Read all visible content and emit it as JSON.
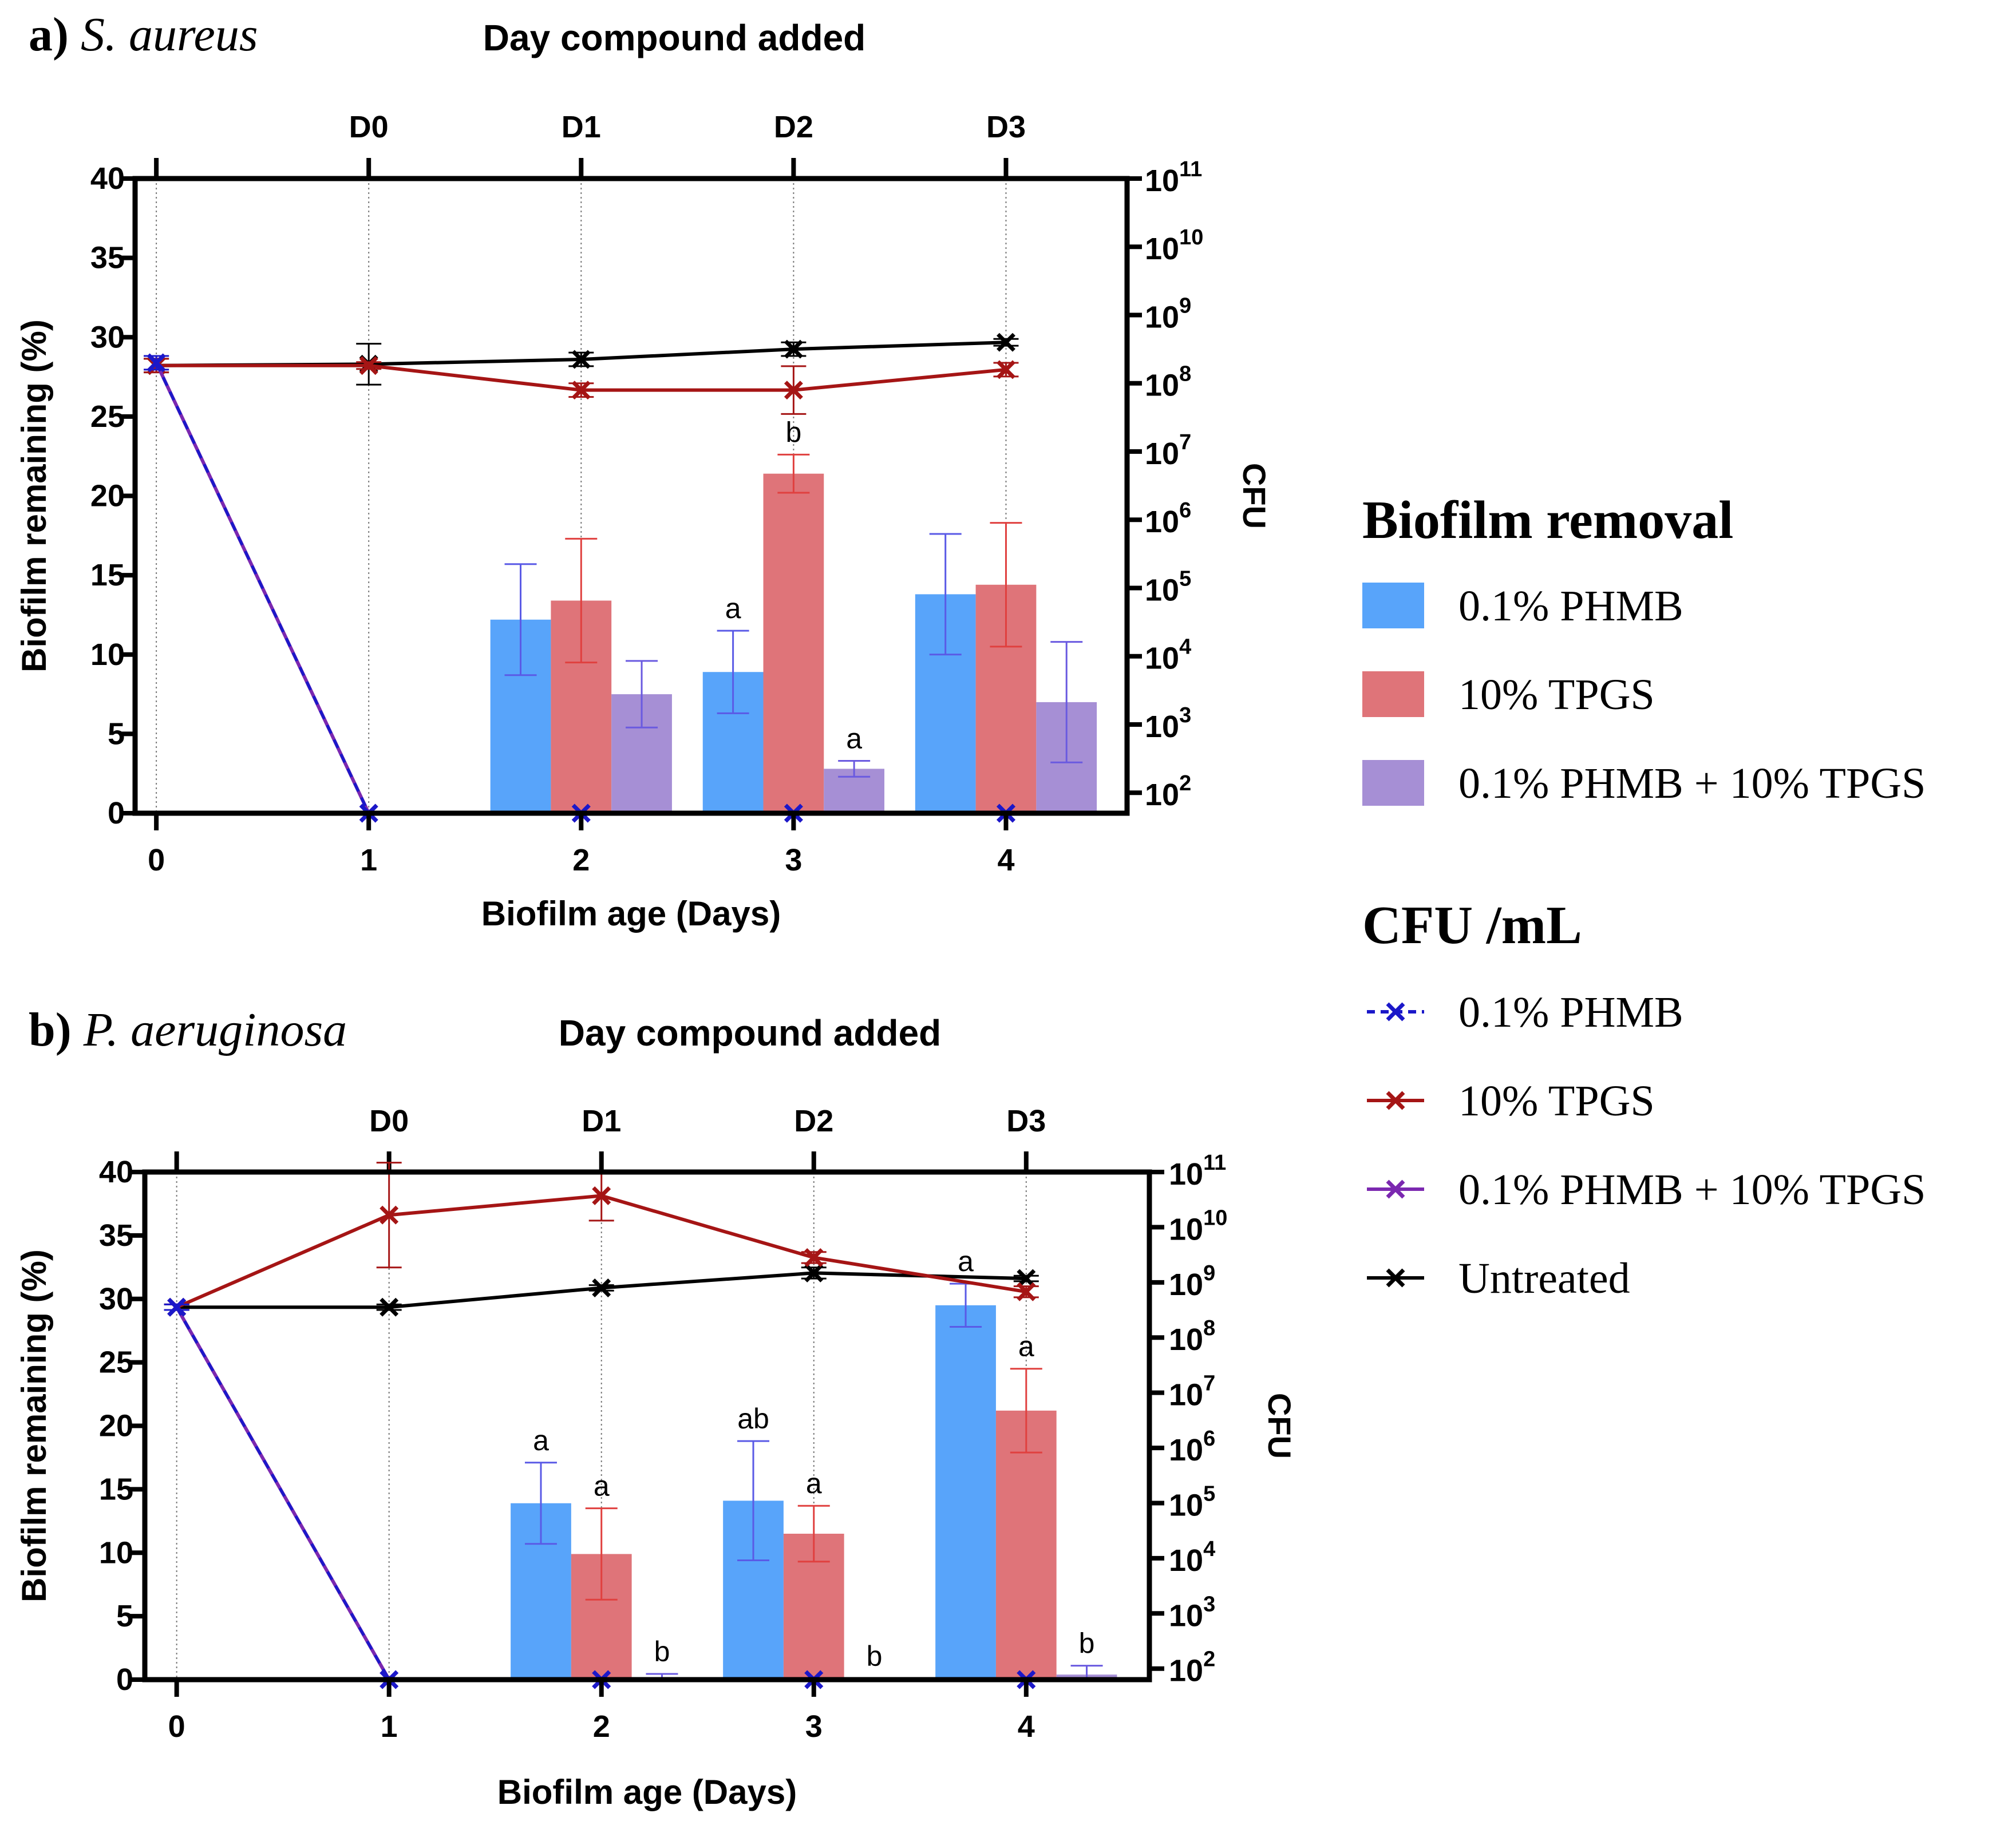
{
  "figure": {
    "colors": {
      "phmb_bar": "#58a4fa",
      "tpgs_bar": "#df7479",
      "combo_bar": "#a68fd5",
      "phmb_err": "#5a5ae6",
      "tpgs_err": "#e0403f",
      "combo_err": "#6a5ae0",
      "phmb_line": "#1b18c9",
      "tpgs_line": "#a51515",
      "combo_line": "#7b28b0",
      "untreated_line": "#000000"
    },
    "legend": {
      "removal_title": "Biofilm removal",
      "removal_items": [
        {
          "label": "0.1% PHMB",
          "color": "#58a4fa"
        },
        {
          "label": "10% TPGS",
          "color": "#df7479"
        },
        {
          "label": "0.1% PHMB + 10% TPGS",
          "color": "#a68fd5"
        }
      ],
      "cfu_title": "CFU /mL",
      "cfu_items": [
        {
          "label": "0.1% PHMB",
          "color": "#1b18c9",
          "dashed": true
        },
        {
          "label": "10% TPGS",
          "color": "#a51515",
          "dashed": false
        },
        {
          "label": "0.1% PHMB + 10% TPGS",
          "color": "#7b28b0",
          "dashed": false
        },
        {
          "label": "Untreated",
          "color": "#000000",
          "dashed": false
        }
      ]
    }
  },
  "chart_data": [
    {
      "type": "bar",
      "panel_prefix": "a) ",
      "organism": "S. aureus",
      "top_axis_title": "Day compound added",
      "top_ticks": [
        {
          "label": "D0",
          "x": 1
        },
        {
          "label": "D1",
          "x": 2
        },
        {
          "label": "D2",
          "x": 3
        },
        {
          "label": "D3",
          "x": 4
        }
      ],
      "xlabel": "Biofilm age (Days)",
      "x_ticks": [
        0,
        1,
        2,
        3,
        4
      ],
      "xlim": [
        -0.1,
        4.57
      ],
      "ylabel": "Biofilm remaining (%)",
      "ylim": [
        0,
        40
      ],
      "y_ticks": [
        0,
        5,
        10,
        15,
        20,
        25,
        30,
        35,
        40
      ],
      "y2label": "CFU",
      "y2_exponents": [
        2,
        3,
        4,
        5,
        6,
        7,
        8,
        9,
        10,
        11
      ],
      "y2_range": [
        1.7,
        11
      ],
      "bar_series": [
        {
          "name": "0.1% PHMB",
          "x": [
            2,
            3,
            4
          ],
          "values": [
            12.2,
            8.9,
            13.8
          ],
          "err": [
            3.5,
            2.6,
            3.8
          ],
          "labels": [
            "",
            "a",
            ""
          ]
        },
        {
          "name": "10% TPGS",
          "x": [
            2,
            3,
            4
          ],
          "values": [
            13.4,
            21.4,
            14.4
          ],
          "err": [
            3.9,
            1.2,
            3.9
          ],
          "labels": [
            "",
            "b",
            ""
          ]
        },
        {
          "name": "0.1% PHMB + 10% TPGS",
          "x": [
            2,
            3,
            4
          ],
          "values": [
            7.5,
            2.8,
            7.0
          ],
          "err": [
            2.1,
            0.5,
            3.8
          ],
          "labels": [
            "",
            "a",
            ""
          ]
        }
      ],
      "line_series": [
        {
          "name": "Untreated",
          "x": [
            0,
            1,
            2,
            3,
            4
          ],
          "log_cfu": [
            8.26,
            8.28,
            8.35,
            8.5,
            8.6
          ],
          "err": [
            0.1,
            0.3,
            0.1,
            0.1,
            0.05
          ]
        },
        {
          "name": "10% TPGS",
          "x": [
            0,
            1,
            2,
            3,
            4
          ],
          "log_cfu": [
            8.26,
            8.26,
            7.9,
            7.9,
            8.2
          ],
          "err": [
            0.1,
            0.05,
            0.1,
            0.35,
            0.1
          ]
        },
        {
          "name": "0.1% PHMB + 10% TPGS",
          "x": [
            0,
            1,
            2,
            3,
            4
          ],
          "log_cfu": [
            8.3,
            1.7,
            1.7,
            1.7,
            1.7
          ],
          "err": [
            0.1,
            0,
            0,
            0,
            0
          ]
        },
        {
          "name": "0.1% PHMB",
          "x": [
            0,
            1,
            2,
            3,
            4
          ],
          "log_cfu": [
            8.3,
            1.7,
            1.7,
            1.7,
            1.7
          ],
          "err": [
            0.1,
            0,
            0,
            0,
            0
          ]
        }
      ]
    },
    {
      "type": "bar",
      "panel_prefix": "b) ",
      "organism": "P. aeruginosa",
      "top_axis_title": "Day compound added",
      "top_ticks": [
        {
          "label": "D0",
          "x": 1
        },
        {
          "label": "D1",
          "x": 2
        },
        {
          "label": "D2",
          "x": 3
        },
        {
          "label": "D3",
          "x": 4
        }
      ],
      "xlabel": "Biofilm age (Days)",
      "x_ticks": [
        0,
        1,
        2,
        3,
        4
      ],
      "xlim": [
        -0.15,
        4.58
      ],
      "ylabel": "Biofilm remaining (%)",
      "ylim": [
        0,
        40
      ],
      "y_ticks": [
        0,
        5,
        10,
        15,
        20,
        25,
        30,
        35,
        40
      ],
      "y2label": "CFU",
      "y2_exponents": [
        2,
        3,
        4,
        5,
        6,
        7,
        8,
        9,
        10,
        11
      ],
      "y2_range": [
        1.8,
        11
      ],
      "bar_series": [
        {
          "name": "0.1% PHMB",
          "x": [
            2,
            3,
            4
          ],
          "values": [
            13.9,
            14.1,
            29.5
          ],
          "err": [
            3.2,
            4.7,
            1.7
          ],
          "labels": [
            "a",
            "ab",
            "a"
          ]
        },
        {
          "name": "10% TPGS",
          "x": [
            2,
            3,
            4
          ],
          "values": [
            9.9,
            11.5,
            21.2
          ],
          "err": [
            3.6,
            2.2,
            3.3
          ],
          "labels": [
            "a",
            "a",
            "a"
          ]
        },
        {
          "name": "0.1% PHMB + 10% TPGS",
          "x": [
            2,
            3,
            4
          ],
          "values": [
            0.15,
            0.0,
            0.4
          ],
          "err": [
            0.3,
            0.1,
            0.7
          ],
          "labels": [
            "b",
            "b",
            "b"
          ]
        }
      ],
      "line_series": [
        {
          "name": "Untreated",
          "x": [
            0,
            1,
            2,
            3,
            4
          ],
          "log_cfu": [
            8.55,
            8.55,
            8.9,
            9.17,
            9.07
          ],
          "err": [
            0.05,
            0.05,
            0.05,
            0.1,
            0.05
          ]
        },
        {
          "name": "10% TPGS",
          "x": [
            0,
            1,
            2,
            3,
            4
          ],
          "log_cfu": [
            8.55,
            10.22,
            10.57,
            9.45,
            8.83
          ],
          "err": [
            0.05,
            0.95,
            0.45,
            0.1,
            0.1
          ]
        },
        {
          "name": "0.1% PHMB + 10% TPGS",
          "x": [
            0,
            1,
            2,
            3,
            4
          ],
          "log_cfu": [
            8.55,
            1.8,
            1.8,
            1.8,
            1.8
          ],
          "err": [
            0.05,
            0,
            0,
            0,
            0
          ]
        },
        {
          "name": "0.1% PHMB",
          "x": [
            0,
            1,
            2,
            3,
            4
          ],
          "log_cfu": [
            8.55,
            1.8,
            1.8,
            1.8,
            1.8
          ],
          "err": [
            0.05,
            0,
            0,
            0,
            0
          ]
        }
      ]
    }
  ]
}
